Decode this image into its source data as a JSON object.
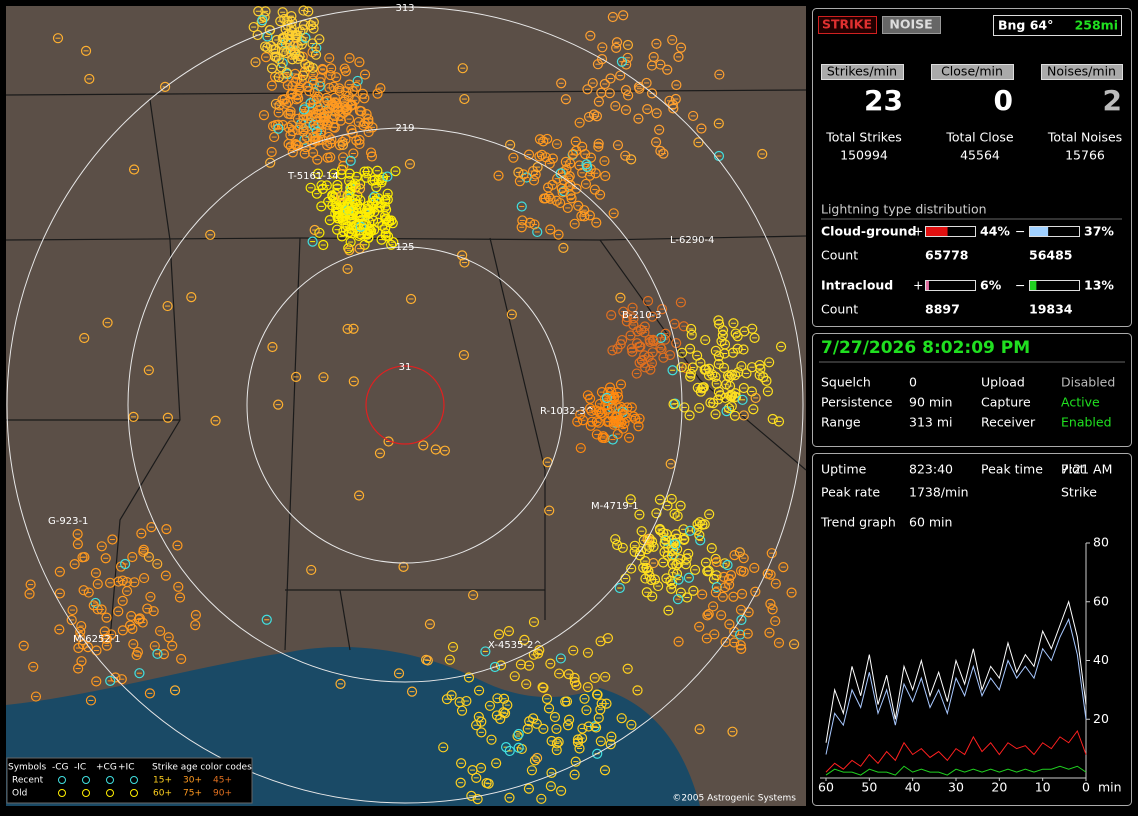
{
  "map": {
    "range_labels": [
      "313",
      "219",
      "125",
      "31"
    ],
    "storm_labels": [
      "T-5161-14",
      "L-6290-4",
      "B-210-3",
      "R-1032-3^",
      "M-4719-1",
      "G-923-1",
      "M-6252-1",
      "X-4535-2^"
    ],
    "legend": {
      "symbols": "Symbols",
      "types": [
        "-CG",
        "-IC",
        "+CG",
        "+IC"
      ],
      "age_title": "Strike age color codes",
      "rows": [
        {
          "label": "Recent",
          "ages": [
            "15+",
            "30+",
            "45+"
          ]
        },
        {
          "label": "Old",
          "ages": [
            "60+",
            "75+",
            "90+"
          ]
        }
      ]
    },
    "copyright": "©2005 Astrogenic Systems"
  },
  "header": {
    "strike_button": "STRIKE",
    "noise_button": "NOISE",
    "bearing": "Bng 64°",
    "distance": "258mi"
  },
  "rates": [
    {
      "label": "Strikes/min",
      "value": "23"
    },
    {
      "label": "Close/min",
      "value": "0"
    },
    {
      "label": "Noises/min",
      "value": "2"
    }
  ],
  "totals": [
    {
      "label": "Total Strikes",
      "value": "150994"
    },
    {
      "label": "Total Close",
      "value": "45564"
    },
    {
      "label": "Total Noises",
      "value": "15766"
    }
  ],
  "distribution": {
    "title": "Lightning type distribution",
    "count_label": "Count",
    "plus": "+",
    "minus": "−",
    "rows": [
      {
        "label": "Cloud-ground",
        "plus": {
          "value": 44,
          "label": "44%"
        },
        "minus": {
          "value": 37,
          "label": "37%"
        },
        "counts": [
          "65778",
          "56485"
        ]
      },
      {
        "label": "Intracloud",
        "plus": {
          "value": 6,
          "label": "6%"
        },
        "minus": {
          "value": 13,
          "label": "13%"
        },
        "counts": [
          "8897",
          "19834"
        ]
      }
    ]
  },
  "datetime": "7/27/2026 8:02:09 PM",
  "status": [
    [
      "Squelch",
      "0",
      "Upload",
      "Disabled"
    ],
    [
      "Persistence",
      "90 min",
      "Capture",
      "Active"
    ],
    [
      "Range",
      "313 mi",
      "Receiver",
      "Enabled"
    ]
  ],
  "stats": [
    [
      "Uptime",
      "823:40",
      "Peak time",
      "7:21 AM",
      "Plot"
    ],
    [
      "Peak rate",
      "1738/min",
      "",
      "",
      "Strike"
    ]
  ],
  "trend": {
    "label": "Trend graph",
    "value": "60 min"
  },
  "trend_chart": {
    "type": "line",
    "xlim": [
      60,
      0
    ],
    "xticks": [
      60,
      50,
      40,
      30,
      20,
      10,
      0
    ],
    "x_unit": "min",
    "ylim": [
      0,
      80
    ],
    "yticks": [
      20,
      40,
      60,
      80
    ],
    "x": [
      60,
      58,
      56,
      54,
      52,
      50,
      48,
      46,
      44,
      42,
      40,
      38,
      36,
      34,
      32,
      30,
      28,
      26,
      24,
      22,
      20,
      18,
      16,
      14,
      12,
      10,
      8,
      6,
      4,
      2,
      0
    ],
    "series": [
      {
        "color": "#ffffff",
        "values": [
          12,
          30,
          22,
          38,
          28,
          42,
          25,
          35,
          20,
          38,
          30,
          40,
          28,
          36,
          26,
          40,
          32,
          44,
          30,
          38,
          34,
          46,
          36,
          42,
          38,
          50,
          44,
          52,
          60,
          48,
          25
        ]
      },
      {
        "color": "#a8c8ff",
        "values": [
          8,
          22,
          18,
          30,
          24,
          36,
          22,
          30,
          18,
          32,
          26,
          34,
          24,
          30,
          22,
          34,
          28,
          38,
          28,
          34,
          30,
          40,
          34,
          38,
          34,
          44,
          40,
          48,
          54,
          42,
          20
        ]
      },
      {
        "color": "#ff2020",
        "values": [
          2,
          5,
          3,
          6,
          4,
          8,
          5,
          9,
          6,
          12,
          8,
          10,
          7,
          9,
          6,
          10,
          8,
          14,
          9,
          12,
          8,
          12,
          10,
          11,
          8,
          12,
          10,
          14,
          12,
          16,
          8
        ]
      },
      {
        "color": "#20d020",
        "values": [
          1,
          3,
          2,
          2,
          1,
          3,
          2,
          2,
          1,
          4,
          2,
          3,
          2,
          2,
          1,
          3,
          2,
          3,
          2,
          3,
          2,
          3,
          2,
          3,
          2,
          3,
          3,
          4,
          3,
          4,
          2
        ]
      }
    ]
  }
}
